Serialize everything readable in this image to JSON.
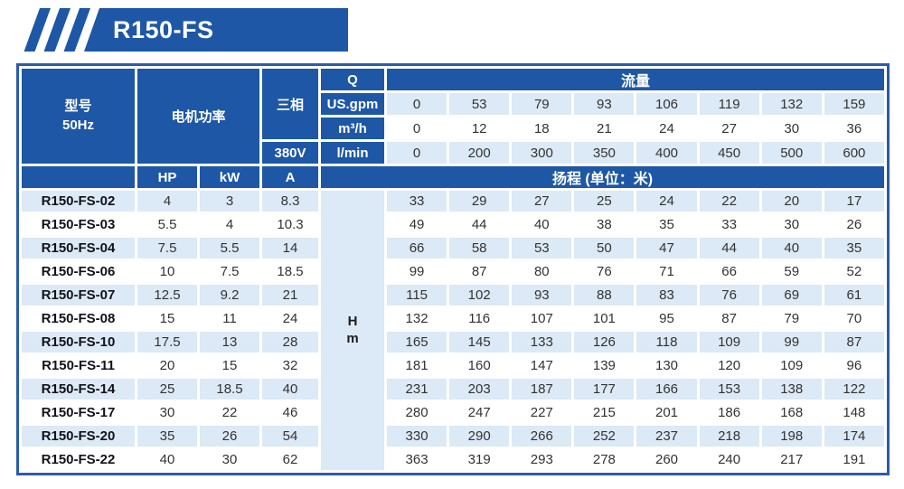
{
  "badge": {
    "title": "R150-FS"
  },
  "colors": {
    "header_blue": "#1e57a5",
    "row_light_blue": "#dce9f6",
    "row_white": "#ffffff",
    "outer_border_blue": "#2a5cab",
    "number_text": "#333333",
    "model_text": "#12121a",
    "header_text": "#ffffff"
  },
  "table": {
    "header": {
      "model_line1": "型号",
      "model_line2": "50Hz",
      "motor_power": "电机功率",
      "three_phase": "三相",
      "voltage": "380V",
      "q": "Q",
      "flow_title": "流量",
      "hp": "HP",
      "kw": "kW",
      "a": "A",
      "head_title": "扬程 (单位：米)",
      "head_unit_line1": "H",
      "head_unit_line2": "m"
    },
    "flow_rows": [
      {
        "unit": "US.gpm",
        "values": [
          "0",
          "53",
          "79",
          "93",
          "106",
          "119",
          "132",
          "159"
        ]
      },
      {
        "unit": "m³/h",
        "values": [
          "0",
          "12",
          "18",
          "21",
          "24",
          "27",
          "30",
          "36"
        ]
      },
      {
        "unit": "l/min",
        "values": [
          "0",
          "200",
          "300",
          "350",
          "400",
          "450",
          "500",
          "600"
        ]
      }
    ],
    "rows": [
      {
        "model": "R150-FS-02",
        "hp": "4",
        "kw": "3",
        "a": "8.3",
        "head": [
          "33",
          "29",
          "27",
          "25",
          "24",
          "22",
          "20",
          "17"
        ]
      },
      {
        "model": "R150-FS-03",
        "hp": "5.5",
        "kw": "4",
        "a": "10.3",
        "head": [
          "49",
          "44",
          "40",
          "38",
          "35",
          "33",
          "30",
          "26"
        ]
      },
      {
        "model": "R150-FS-04",
        "hp": "7.5",
        "kw": "5.5",
        "a": "14",
        "head": [
          "66",
          "58",
          "53",
          "50",
          "47",
          "44",
          "40",
          "35"
        ]
      },
      {
        "model": "R150-FS-06",
        "hp": "10",
        "kw": "7.5",
        "a": "18.5",
        "head": [
          "99",
          "87",
          "80",
          "76",
          "71",
          "66",
          "59",
          "52"
        ]
      },
      {
        "model": "R150-FS-07",
        "hp": "12.5",
        "kw": "9.2",
        "a": "21",
        "head": [
          "115",
          "102",
          "93",
          "88",
          "83",
          "76",
          "69",
          "61"
        ]
      },
      {
        "model": "R150-FS-08",
        "hp": "15",
        "kw": "11",
        "a": "24",
        "head": [
          "132",
          "116",
          "107",
          "101",
          "95",
          "87",
          "79",
          "70"
        ]
      },
      {
        "model": "R150-FS-10",
        "hp": "17.5",
        "kw": "13",
        "a": "28",
        "head": [
          "165",
          "145",
          "133",
          "126",
          "118",
          "109",
          "99",
          "87"
        ]
      },
      {
        "model": "R150-FS-11",
        "hp": "20",
        "kw": "15",
        "a": "32",
        "head": [
          "181",
          "160",
          "147",
          "139",
          "130",
          "120",
          "109",
          "96"
        ]
      },
      {
        "model": "R150-FS-14",
        "hp": "25",
        "kw": "18.5",
        "a": "40",
        "head": [
          "231",
          "203",
          "187",
          "177",
          "166",
          "153",
          "138",
          "122"
        ]
      },
      {
        "model": "R150-FS-17",
        "hp": "30",
        "kw": "22",
        "a": "46",
        "head": [
          "280",
          "247",
          "227",
          "215",
          "201",
          "186",
          "168",
          "148"
        ]
      },
      {
        "model": "R150-FS-20",
        "hp": "35",
        "kw": "26",
        "a": "54",
        "head": [
          "330",
          "290",
          "266",
          "252",
          "237",
          "218",
          "198",
          "174"
        ]
      },
      {
        "model": "R150-FS-22",
        "hp": "40",
        "kw": "30",
        "a": "62",
        "head": [
          "363",
          "319",
          "293",
          "278",
          "260",
          "240",
          "217",
          "191"
        ]
      }
    ]
  }
}
